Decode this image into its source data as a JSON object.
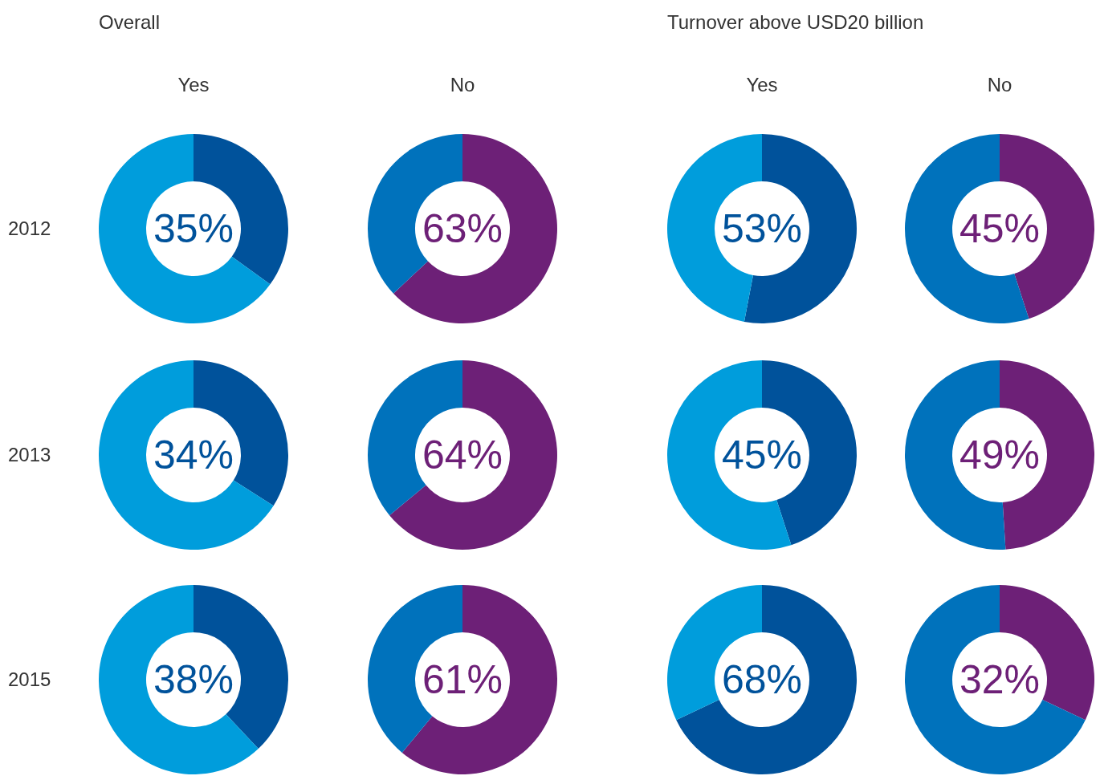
{
  "chart_data": [
    {
      "type": "donut",
      "title": "Overall",
      "subtitle": "Yes",
      "ylabel": "2012",
      "categories": [
        null,
        null
      ],
      "values": [
        35,
        65
      ],
      "colors": [
        "#00529b",
        "#009ddc"
      ],
      "value_labels": [
        "35%",
        null
      ]
    },
    {
      "type": "donut",
      "subtitle": "No",
      "categories": [
        null,
        null
      ],
      "values": [
        63,
        37
      ],
      "colors": [
        "#6d2077",
        "#0072bc"
      ],
      "value_labels": [
        "63%",
        null
      ]
    },
    {
      "type": "donut",
      "title": "Turnover above USD20 billion",
      "subtitle": "Yes",
      "categories": [
        null,
        null
      ],
      "values": [
        53,
        47
      ],
      "colors": [
        "#00529b",
        "#009ddc"
      ],
      "value_labels": [
        "53%",
        null
      ]
    },
    {
      "type": "donut",
      "subtitle": "No",
      "categories": [
        null,
        null
      ],
      "values": [
        45,
        55
      ],
      "colors": [
        "#6d2077",
        "#0072bc"
      ],
      "value_labels": [
        "45%",
        null
      ]
    },
    {
      "type": "donut",
      "ylabel": "2013",
      "categories": [
        null,
        null
      ],
      "values": [
        34,
        66
      ],
      "colors": [
        "#00529b",
        "#009ddc"
      ],
      "value_labels": [
        "34%",
        null
      ]
    },
    {
      "type": "donut",
      "categories": [
        null,
        null
      ],
      "values": [
        64,
        36
      ],
      "colors": [
        "#6d2077",
        "#0072bc"
      ],
      "value_labels": [
        "64%",
        null
      ]
    },
    {
      "type": "donut",
      "categories": [
        null,
        null
      ],
      "values": [
        45,
        55
      ],
      "colors": [
        "#00529b",
        "#009ddc"
      ],
      "value_labels": [
        "45%",
        null
      ]
    },
    {
      "type": "donut",
      "categories": [
        null,
        null
      ],
      "values": [
        49,
        51
      ],
      "colors": [
        "#6d2077",
        "#0072bc"
      ],
      "value_labels": [
        "49%",
        null
      ]
    },
    {
      "type": "donut",
      "ylabel": "2015",
      "categories": [
        null,
        null
      ],
      "values": [
        38,
        62
      ],
      "colors": [
        "#00529b",
        "#009ddc"
      ],
      "value_labels": [
        "38%",
        null
      ]
    },
    {
      "type": "donut",
      "categories": [
        null,
        null
      ],
      "values": [
        61,
        39
      ],
      "colors": [
        "#6d2077",
        "#0072bc"
      ],
      "value_labels": [
        "61%",
        null
      ]
    },
    {
      "type": "donut",
      "categories": [
        null,
        null
      ],
      "values": [
        68,
        32
      ],
      "colors": [
        "#00529b",
        "#009ddc"
      ],
      "value_labels": [
        "68%",
        null
      ]
    },
    {
      "type": "donut",
      "categories": [
        null,
        null
      ],
      "values": [
        32,
        68
      ],
      "colors": [
        "#6d2077",
        "#0072bc"
      ],
      "value_labels": [
        "32%",
        null
      ]
    }
  ]
}
